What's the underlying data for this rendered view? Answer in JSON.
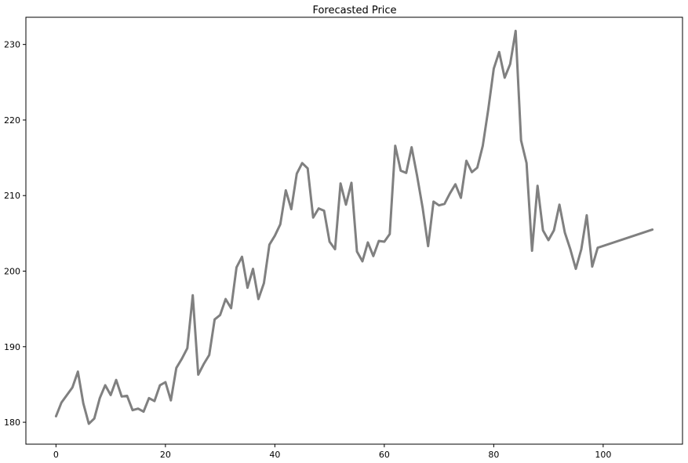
{
  "chart_data": {
    "type": "line",
    "title": "Forecasted Price",
    "xlabel": "",
    "ylabel": "",
    "xlim": [
      -5.5,
      114.5
    ],
    "ylim": [
      177.1,
      233.6
    ],
    "xticks": [
      0,
      20,
      40,
      60,
      80,
      100
    ],
    "yticks": [
      180,
      190,
      200,
      210,
      220,
      230
    ],
    "grid": false,
    "series_color": "#808080",
    "series": [
      {
        "x": [
          0,
          1,
          2,
          3,
          4,
          5,
          6,
          7,
          8,
          9,
          10,
          11,
          12,
          13,
          14,
          15,
          16,
          17,
          18,
          19,
          20,
          21,
          22,
          23,
          24,
          25,
          26,
          27,
          28,
          29,
          30,
          31,
          32,
          33,
          34,
          35,
          36,
          37,
          38,
          39,
          40,
          41,
          42,
          43,
          44,
          45,
          46,
          47,
          48,
          49,
          50,
          51,
          52,
          53,
          54,
          55,
          56,
          57,
          58,
          59,
          60,
          61,
          62,
          63,
          64,
          65,
          66,
          67,
          68,
          69,
          70,
          71,
          72,
          73,
          74,
          75,
          76,
          77,
          78,
          79,
          80,
          81,
          82,
          83,
          84,
          85,
          86,
          87,
          88,
          89,
          90,
          91,
          92,
          93,
          94,
          95,
          96,
          97,
          98,
          99,
          109
        ],
        "values": [
          180.8,
          182.6,
          183.6,
          184.6,
          186.7,
          182.5,
          179.8,
          180.5,
          183.2,
          184.9,
          183.6,
          185.6,
          183.4,
          183.5,
          181.6,
          181.8,
          181.4,
          183.2,
          182.8,
          184.9,
          185.3,
          182.9,
          187.2,
          188.4,
          189.8,
          196.8,
          186.3,
          187.7,
          188.9,
          193.6,
          194.2,
          196.3,
          195.1,
          200.5,
          201.9,
          197.8,
          200.3,
          196.3,
          198.4,
          203.5,
          204.7,
          206.2,
          210.7,
          208.2,
          212.9,
          214.3,
          213.6,
          207.1,
          208.3,
          208.0,
          203.9,
          202.9,
          211.6,
          208.8,
          211.7,
          202.6,
          201.3,
          203.8,
          202.0,
          204.0,
          203.9,
          204.9,
          216.6,
          213.3,
          213.0,
          216.4,
          212.6,
          208.4,
          203.3,
          209.2,
          208.7,
          208.9,
          210.3,
          211.5,
          209.7,
          214.6,
          213.1,
          213.7,
          216.6,
          221.4,
          226.8,
          229.0,
          225.6,
          227.4,
          231.8,
          217.3,
          214.3,
          202.7,
          211.3,
          205.4,
          204.1,
          205.4,
          208.8,
          205.1,
          202.9,
          200.3,
          202.9,
          207.4,
          200.6,
          203.1,
          205.5
        ]
      }
    ]
  }
}
